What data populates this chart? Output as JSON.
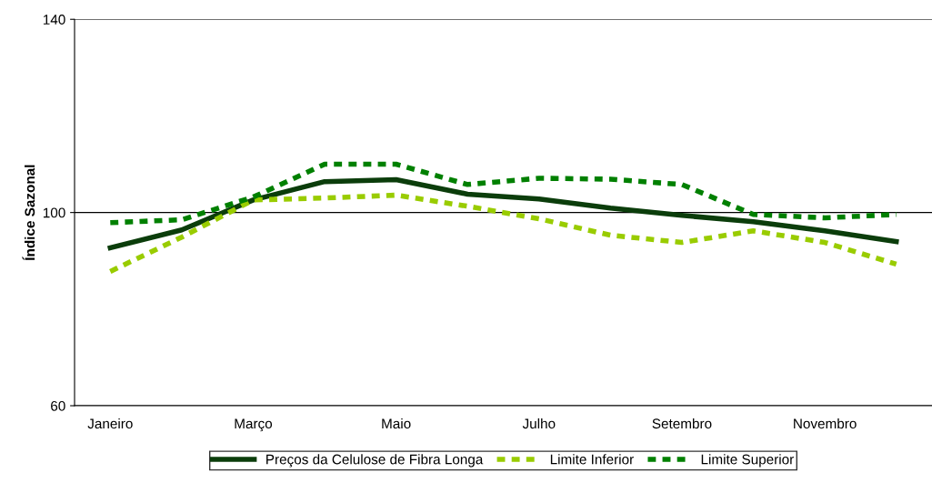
{
  "chart_data": {
    "type": "line",
    "ylabel": "Índice Sazonal",
    "categories": [
      "Janeiro",
      null,
      "Março",
      null,
      "Maio",
      null,
      "Julho",
      null,
      "Setembro",
      null,
      "Novembro",
      null
    ],
    "series": [
      {
        "name": "Preços da Celulose de Fibra Longa",
        "color": "#0b3d0b",
        "line_style": "solid",
        "values": [
          92.7,
          96.4,
          102.6,
          106.4,
          106.8,
          103.8,
          102.8,
          100.9,
          99.4,
          98.1,
          96.2,
          94.0
        ]
      },
      {
        "name": "Limite Inferior",
        "color": "#99cc00",
        "line_style": "dashed",
        "values": [
          87.8,
          94.9,
          102.6,
          103.0,
          103.6,
          101.3,
          98.7,
          95.3,
          93.8,
          96.2,
          93.8,
          89.3
        ]
      },
      {
        "name": "Limite Superior",
        "color": "#008000",
        "line_style": "dashed",
        "values": [
          97.9,
          98.5,
          103.2,
          110.0,
          110.0,
          105.8,
          107.1,
          106.9,
          105.8,
          99.6,
          98.9,
          99.6
        ]
      }
    ],
    "ylim": [
      60,
      140
    ],
    "yticks": [
      60,
      100,
      140
    ],
    "grid": "y",
    "legend": "bottom",
    "marker": "none"
  }
}
